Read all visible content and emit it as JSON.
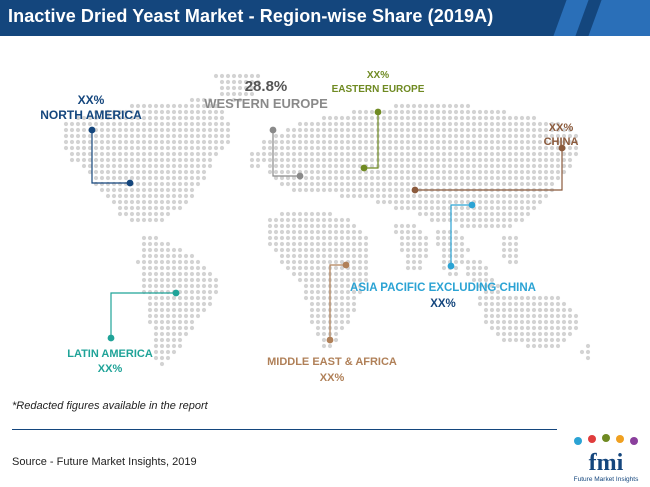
{
  "header": {
    "title": "Inactive Dried Yeast Market - Region-wise Share (2019A)"
  },
  "regions": [
    {
      "id": "north-america",
      "value": "XX%",
      "name": "NORTH AMERICA",
      "color": "#14467d"
    },
    {
      "id": "western-europe",
      "value": "28.8%",
      "name": "WESTERN EUROPE",
      "color": "#8a8a8a"
    },
    {
      "id": "eastern-europe",
      "value": "XX%",
      "name": "EASTERN EUROPE",
      "color": "#6f8a22"
    },
    {
      "id": "china",
      "value": "XX%",
      "name": "CHINA",
      "color": "#8b5a3c"
    },
    {
      "id": "asia-pacific",
      "value": "XX%",
      "name": "ASIA PACIFIC EXCLUDING CHINA",
      "color": "#2ba3d4"
    },
    {
      "id": "middle-east-africa",
      "value": "XX%",
      "name": "MIDDLE EAST & AFRICA",
      "color": "#b08058"
    },
    {
      "id": "latin-america",
      "value": "XX%",
      "name": "LATIN AMERICA",
      "color": "#1fa398"
    }
  ],
  "footnote": "*Redacted figures available in the report",
  "source": "Source - Future Market Insights, 2019",
  "logo": {
    "mark": "fmi",
    "tagline": "Future Market Insights"
  }
}
